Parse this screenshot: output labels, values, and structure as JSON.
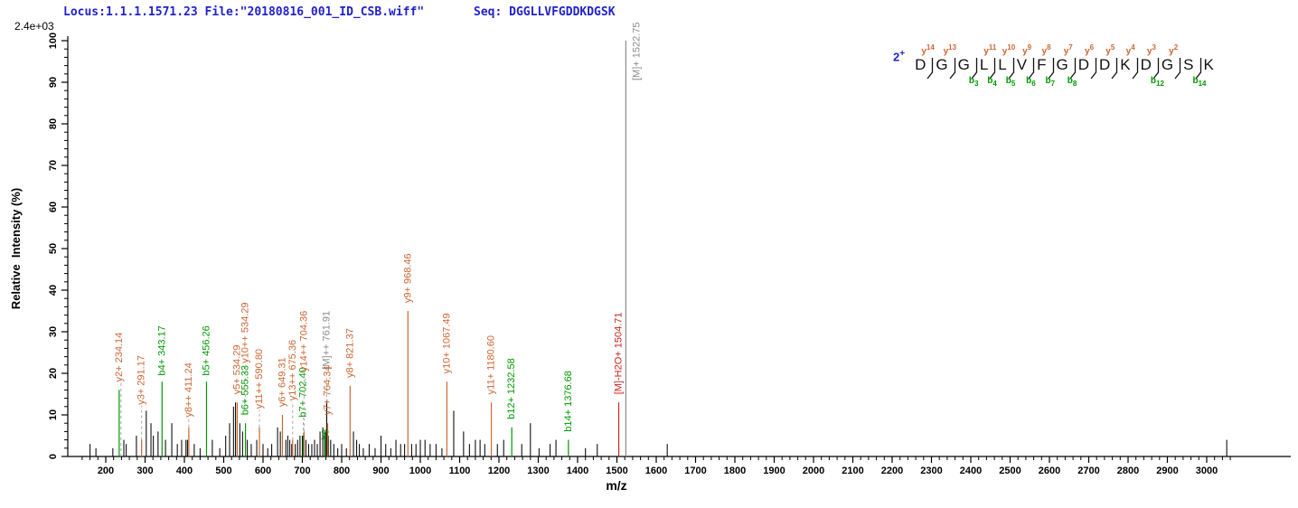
{
  "header": {
    "locus_file": "Locus:1.1.1.1571.23 File:\"20180816_001_ID_CSB.wiff\"",
    "seq": "Seq: DGGLLVFGDDKDGSK",
    "max_intensity": "2.4e+03",
    "text_color": "#2222cc"
  },
  "peptide": {
    "charge": "2+",
    "residues": [
      "D",
      "G",
      "G",
      "L",
      "L",
      "V",
      "F",
      "G",
      "D",
      "D",
      "K",
      "D",
      "G",
      "S",
      "K"
    ],
    "y_labels": [
      "14",
      "13",
      "",
      "11",
      "10",
      "9",
      "8",
      "7",
      "6",
      "5",
      "4",
      "3",
      "2",
      ""
    ],
    "b_labels": [
      "",
      "",
      "3",
      "4",
      "5",
      "6",
      "7",
      "8",
      "",
      "",
      "",
      "12",
      "",
      "14"
    ]
  },
  "chart_data": {
    "type": "bar",
    "title": "",
    "xlabel": "m/z",
    "ylabel": "Relative  Intensity (%)",
    "xlim": [
      100,
      3100
    ],
    "ylim": [
      0,
      100
    ],
    "grid": false,
    "x_tick_labels": [
      200,
      300,
      400,
      500,
      600,
      700,
      800,
      900,
      1000,
      1100,
      1200,
      1300,
      1400,
      1500,
      1600,
      1700,
      1800,
      1900,
      2000,
      2100,
      2200,
      2300,
      2400,
      2500,
      2600,
      2700,
      2800,
      2900,
      3000
    ],
    "x_minor_step": 20,
    "y_tick_labels": [
      0,
      10,
      20,
      30,
      40,
      50,
      60,
      70,
      80,
      90,
      100
    ],
    "y_minor_step": 2,
    "colors": {
      "y_ion": "#cc6633",
      "b_ion": "#009900",
      "precursor": "#8c8c8c",
      "precursor_loss": "#cc2222",
      "peak_default": "#111111",
      "leader": "#aaaaaa",
      "axis": "#000000"
    },
    "labeled_peaks": [
      {
        "label": "y2+ 234.14",
        "mz": 234.14,
        "h": 16,
        "color": "y",
        "peak_color": "b",
        "label_h": 17.5,
        "leader_from": 0,
        "leader_dx": 2
      },
      {
        "label": "y3+ 291.17",
        "mz": 291.17,
        "h": 4,
        "color": "y",
        "label_h": 12
      },
      {
        "label": "b4+ 343.17",
        "mz": 343.17,
        "h": 18,
        "color": "b",
        "label_h": 19
      },
      {
        "label": "y8++ 411.24",
        "mz": 411.24,
        "h": 7,
        "color": "y",
        "label_h": 9
      },
      {
        "label": "b5+ 456.26",
        "mz": 456.26,
        "h": 18,
        "color": "b",
        "label_h": 19
      },
      {
        "label": "y5+ 534.29",
        "mz": 534.29,
        "h": 13,
        "color": "y",
        "label_h": 14.5
      },
      {
        "label": "y10++ 534.29",
        "mz": 534.29,
        "h": 13,
        "color": "y",
        "label_h": 22,
        "label_dx": 9,
        "no_line": true
      },
      {
        "label": "b6+ 555.33",
        "mz": 555.33,
        "h": 8,
        "color": "b",
        "label_h": 9.5
      },
      {
        "label": "y11++ 590.80",
        "mz": 590.8,
        "h": 7,
        "color": "y",
        "label_h": 11
      },
      {
        "label": "y6+ 649.31",
        "mz": 649.31,
        "h": 10,
        "color": "y",
        "label_h": 11.5
      },
      {
        "label": "y13++ 675.36",
        "mz": 675.36,
        "h": 4,
        "color": "y",
        "label_h": 13
      },
      {
        "label": "b7+ 702.40",
        "mz": 702.4,
        "h": 5,
        "color": "b",
        "label_h": 9
      },
      {
        "label": "y14++ 704.36",
        "mz": 704.36,
        "h": 6,
        "color": "y",
        "label_h": 20
      },
      {
        "label": "b8",
        "mz": 759.4,
        "h": 6,
        "color": "b",
        "label_h": 3.5
      },
      {
        "label": "[M]++ 761.91",
        "mz": 761.91,
        "h": 13,
        "color": "m",
        "peak_color": "k",
        "label_h": 20.5
      },
      {
        "label": "y7+ 764.34",
        "mz": 764.34,
        "h": 8,
        "color": "y",
        "label_h": 9.5
      },
      {
        "label": "y8+ 821.37",
        "mz": 821.37,
        "h": 17,
        "color": "y",
        "label_h": 18.5
      },
      {
        "label": "y9+ 968.46",
        "mz": 968.46,
        "h": 35,
        "color": "y",
        "label_h": 36.5
      },
      {
        "label": "y10+ 1067.49",
        "mz": 1067.49,
        "h": 18,
        "color": "y",
        "label_h": 19.5
      },
      {
        "label": "y11+ 1180.60",
        "mz": 1180.6,
        "h": 13,
        "color": "y",
        "label_h": 14.5
      },
      {
        "label": "b12+ 1232.58",
        "mz": 1232.58,
        "h": 7,
        "color": "b",
        "label_h": 8.5
      },
      {
        "label": "b14+ 1376.68",
        "mz": 1376.68,
        "h": 4,
        "color": "b",
        "label_h": 5.5
      },
      {
        "label": "[M]-H2O+ 1504.71",
        "mz": 1504.71,
        "h": 13,
        "color": "red",
        "label_h": 14.5
      },
      {
        "label": "[M]+ 1522.75",
        "mz": 1522.75,
        "h": 100,
        "color": "m",
        "label_h": 90,
        "label_dx": 12
      }
    ],
    "unlabeled_peaks": [
      [
        160,
        3
      ],
      [
        175,
        2
      ],
      [
        218,
        2
      ],
      [
        246,
        4
      ],
      [
        252,
        3
      ],
      [
        278,
        5
      ],
      [
        303,
        11
      ],
      [
        315,
        8
      ],
      [
        321,
        5
      ],
      [
        333,
        6
      ],
      [
        352,
        4
      ],
      [
        368,
        8
      ],
      [
        382,
        3
      ],
      [
        393,
        4
      ],
      [
        404,
        4
      ],
      [
        408,
        4
      ],
      [
        425,
        3
      ],
      [
        440,
        2
      ],
      [
        471,
        4
      ],
      [
        490,
        2
      ],
      [
        505,
        5
      ],
      [
        515,
        8
      ],
      [
        525,
        12
      ],
      [
        530,
        13
      ],
      [
        541,
        8
      ],
      [
        548,
        6
      ],
      [
        560,
        4
      ],
      [
        570,
        3
      ],
      [
        584,
        4
      ],
      [
        600,
        3
      ],
      [
        612,
        2
      ],
      [
        622,
        3
      ],
      [
        637,
        7
      ],
      [
        644,
        6
      ],
      [
        658,
        4
      ],
      [
        663,
        5
      ],
      [
        668,
        4
      ],
      [
        673,
        3
      ],
      [
        682,
        3
      ],
      [
        688,
        4
      ],
      [
        694,
        5
      ],
      [
        700,
        5
      ],
      [
        709,
        4
      ],
      [
        716,
        3
      ],
      [
        724,
        3
      ],
      [
        731,
        4
      ],
      [
        738,
        3
      ],
      [
        745,
        6
      ],
      [
        752,
        7
      ],
      [
        757,
        6
      ],
      [
        766,
        5
      ],
      [
        772,
        4
      ],
      [
        780,
        3
      ],
      [
        790,
        2
      ],
      [
        800,
        3
      ],
      [
        812,
        2
      ],
      [
        830,
        6
      ],
      [
        838,
        4
      ],
      [
        845,
        3
      ],
      [
        855,
        2
      ],
      [
        870,
        3
      ],
      [
        885,
        2
      ],
      [
        900,
        5
      ],
      [
        912,
        3
      ],
      [
        925,
        2
      ],
      [
        938,
        4
      ],
      [
        950,
        3
      ],
      [
        960,
        3
      ],
      [
        978,
        3
      ],
      [
        989,
        3
      ],
      [
        1000,
        4
      ],
      [
        1012,
        4
      ],
      [
        1025,
        3
      ],
      [
        1040,
        3
      ],
      [
        1055,
        2
      ],
      [
        1085,
        11
      ],
      [
        1110,
        6
      ],
      [
        1125,
        3
      ],
      [
        1140,
        4
      ],
      [
        1152,
        4
      ],
      [
        1164,
        3
      ],
      [
        1196,
        3
      ],
      [
        1212,
        4
      ],
      [
        1258,
        3
      ],
      [
        1280,
        8
      ],
      [
        1302,
        2
      ],
      [
        1330,
        3
      ],
      [
        1345,
        4
      ],
      [
        1420,
        2
      ],
      [
        1450,
        3
      ],
      [
        1628,
        3
      ],
      [
        3051,
        4
      ]
    ]
  }
}
